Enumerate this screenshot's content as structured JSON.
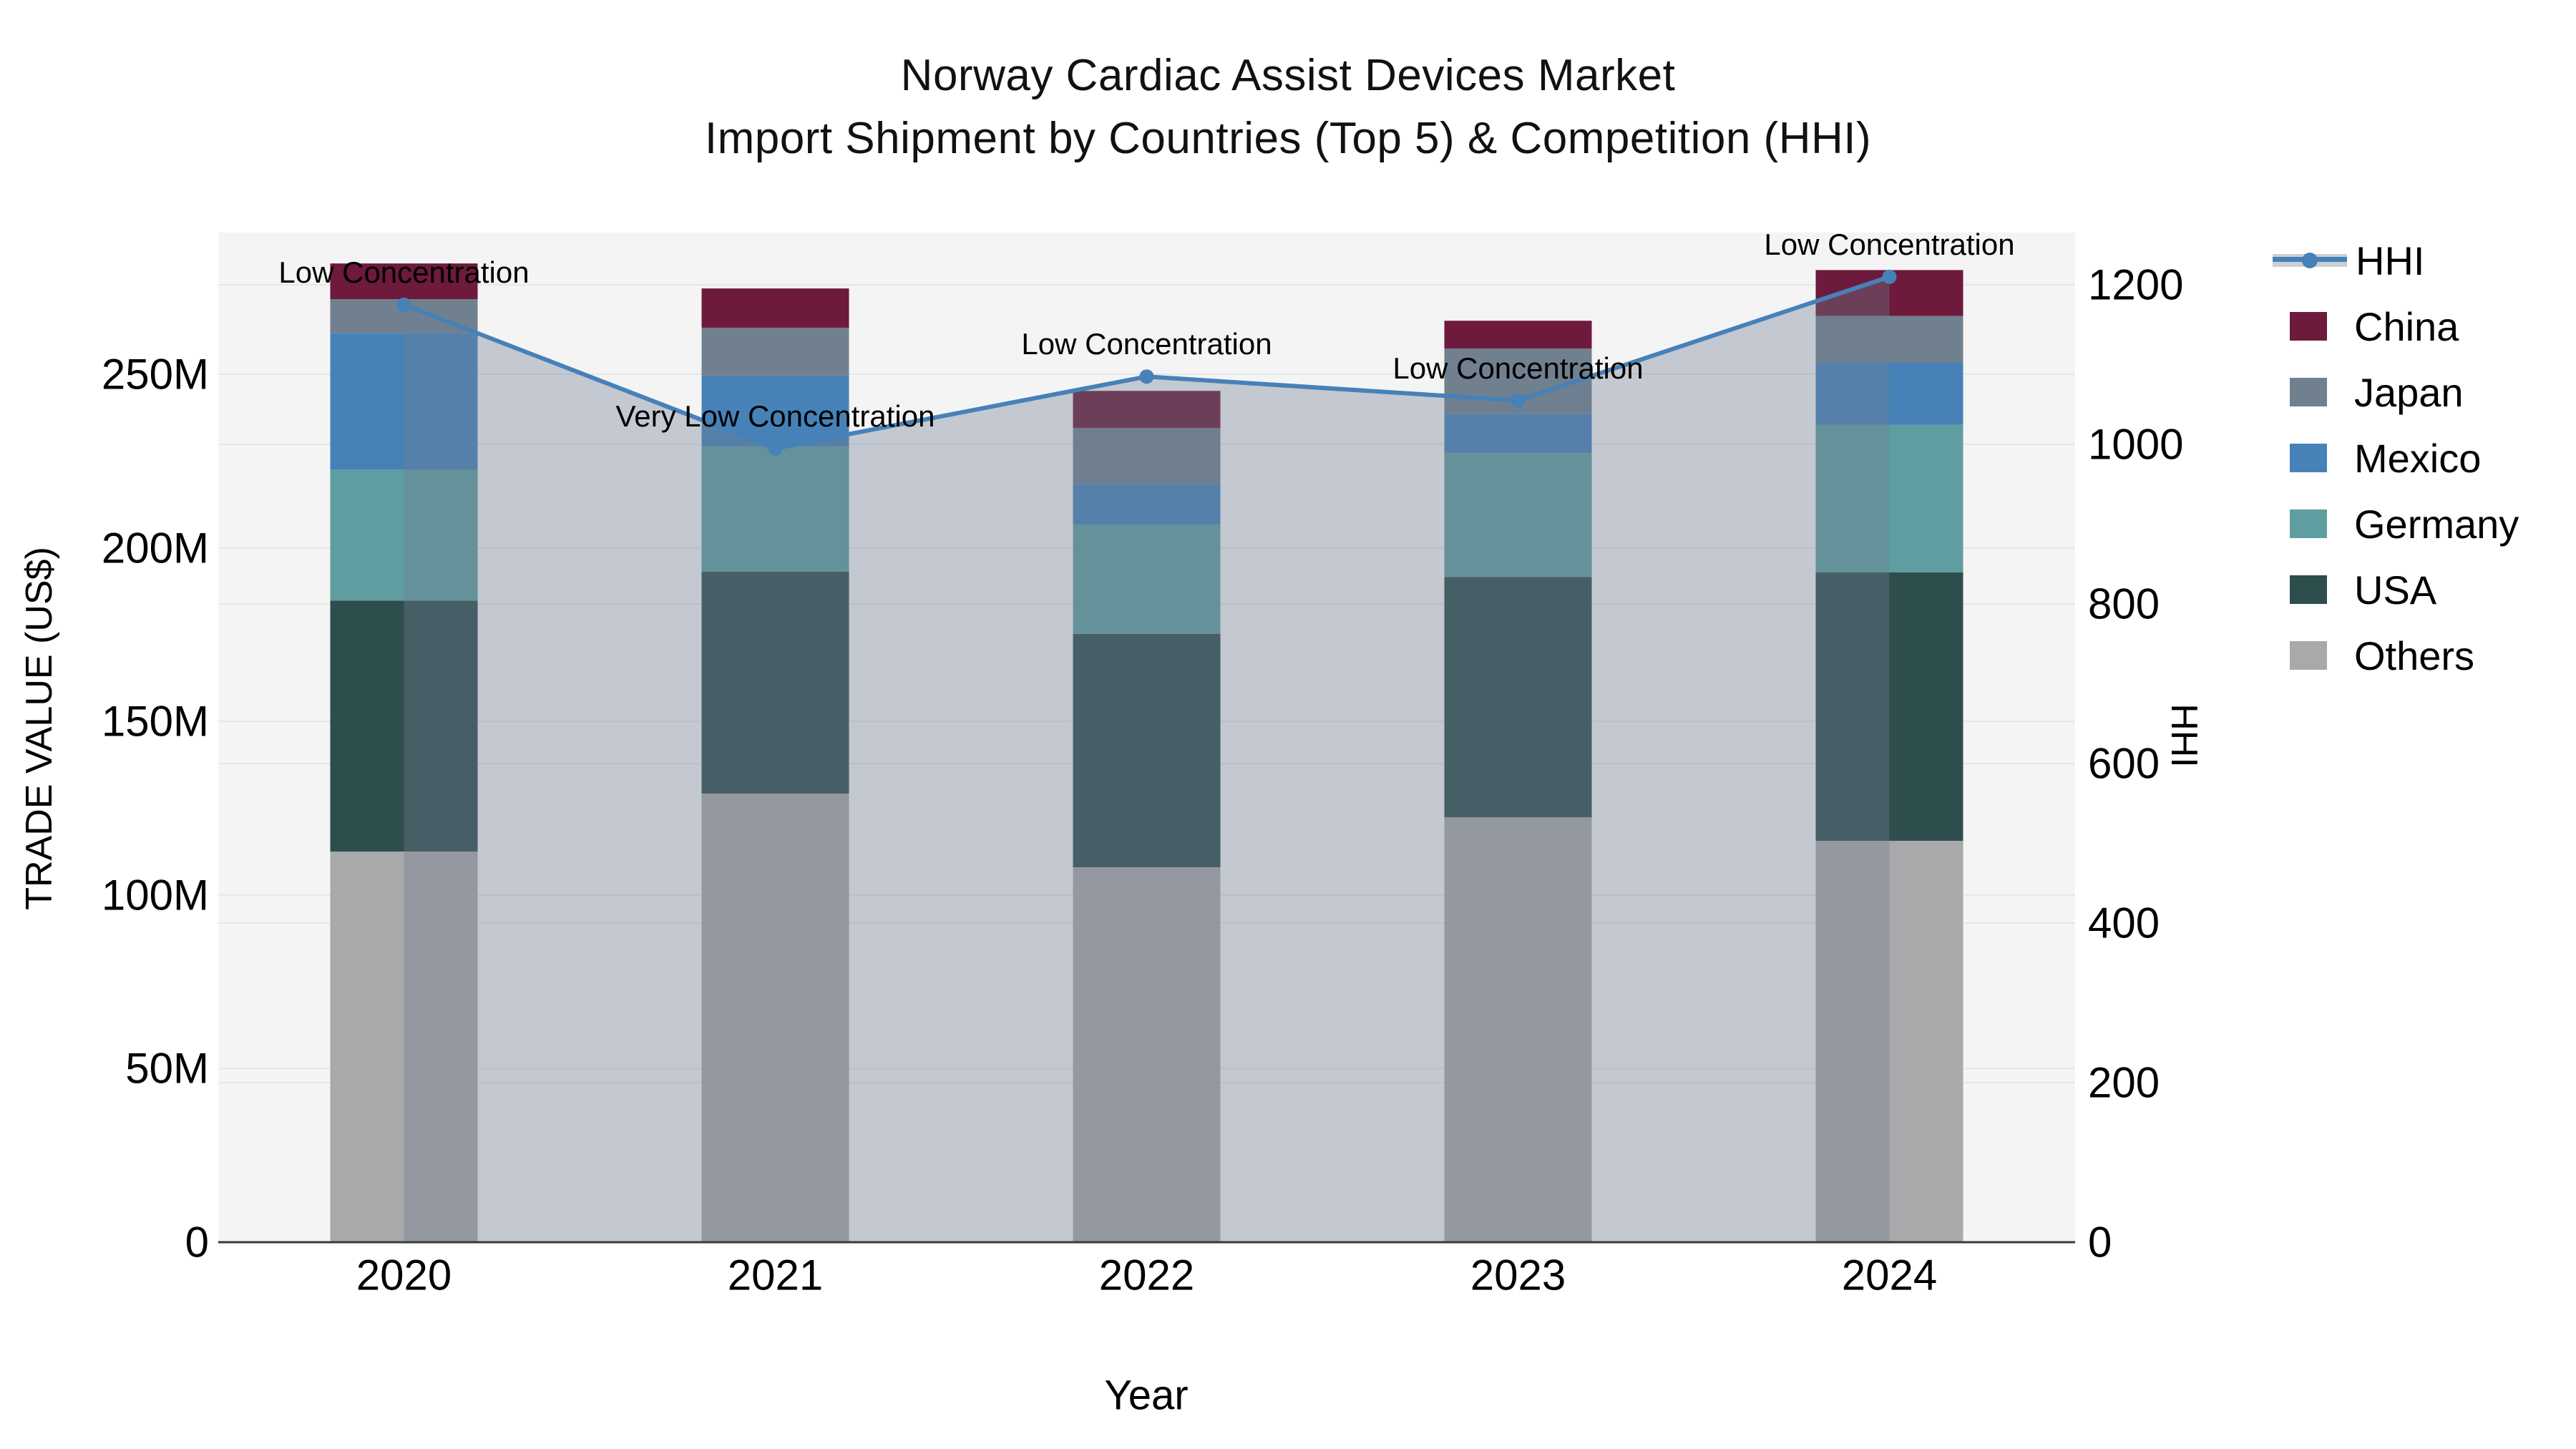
{
  "title": {
    "line1": "Norway Cardiac Assist Devices Market",
    "line2": "Import Shipment by Countries (Top 5) & Competition (HHI)"
  },
  "chart_data": {
    "type": "stacked-bar+line",
    "title": "Norway Cardiac Assist Devices Market",
    "subtitle": "Import Shipment by Countries (Top 5) & Competition (HHI)",
    "categories": [
      "2020",
      "2021",
      "2022",
      "2023",
      "2024"
    ],
    "x_axis": {
      "title": "Year"
    },
    "y_left": {
      "title": "TRADE VALUE (US$)",
      "unit": "US$ millions",
      "tick_values": [
        0,
        50,
        100,
        150,
        200,
        250
      ],
      "tick_labels": [
        "0",
        "50M",
        "100M",
        "150M",
        "200M",
        "250M"
      ],
      "max": 290.8
    },
    "y_right": {
      "title": "HHI",
      "tick_values": [
        0,
        200,
        400,
        600,
        800,
        1000,
        1200
      ],
      "tick_labels": [
        "0",
        "200",
        "400",
        "600",
        "800",
        "1000",
        "1200"
      ],
      "max": 1265.5
    },
    "plot_bg": "#f5f4f5",
    "grid_color": "#e6e6e8",
    "baseline_color": "#3a3a3a",
    "grid": true,
    "legend_position": "right",
    "series": [
      {
        "name": "Others",
        "color": "#a9a9ab",
        "values": [
          112.5,
          129.2,
          108.0,
          122.4,
          115.6
        ]
      },
      {
        "name": "USA",
        "color": "#2e4d4d",
        "values": [
          72.3,
          63.9,
          67.2,
          69.2,
          77.3
        ]
      },
      {
        "name": "Germany",
        "color": "#5f9ea0",
        "values": [
          37.7,
          36.1,
          31.5,
          35.7,
          42.5
        ]
      },
      {
        "name": "Mexico",
        "color": "#4682b8",
        "values": [
          39.4,
          20.4,
          11.7,
          11.3,
          18.0
        ]
      },
      {
        "name": "Japan",
        "color": "#71808f",
        "values": [
          9.7,
          13.8,
          16.1,
          18.8,
          13.4
        ]
      },
      {
        "name": "China",
        "color": "#6d1a3c",
        "values": [
          10.3,
          11.3,
          10.7,
          8.0,
          13.2
        ]
      }
    ],
    "totals": [
      281.9,
      274.7,
      245.2,
      265.4,
      280.0
    ],
    "hhi": {
      "name": "HHI",
      "color": "#4681b8",
      "fill_color": "rgba(110,126,145,0.37)",
      "values": [
        1175,
        995,
        1085,
        1055,
        1210
      ],
      "annotations": [
        "Low Concentration",
        "Very Low Concentration",
        "Low Concentration",
        "Low Concentration",
        "Low Concentration"
      ]
    },
    "legend": {
      "items": [
        "HHI",
        "China",
        "Japan",
        "Mexico",
        "Germany",
        "USA",
        "Others"
      ]
    }
  }
}
